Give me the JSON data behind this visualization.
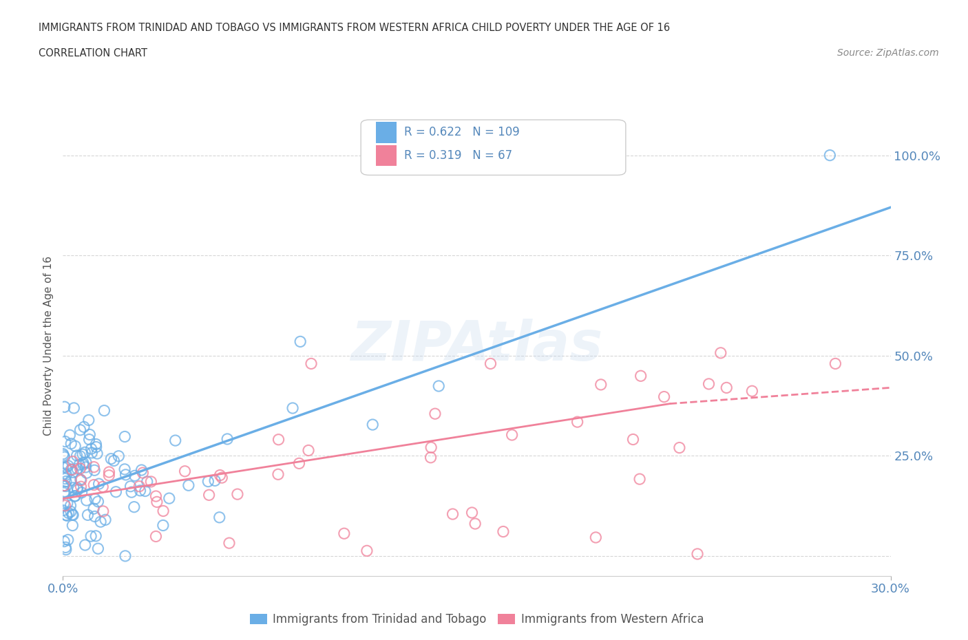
{
  "title_line1": "IMMIGRANTS FROM TRINIDAD AND TOBAGO VS IMMIGRANTS FROM WESTERN AFRICA CHILD POVERTY UNDER THE AGE OF 16",
  "title_line2": "CORRELATION CHART",
  "source_text": "Source: ZipAtlas.com",
  "ylabel": "Child Poverty Under the Age of 16",
  "xlim": [
    0.0,
    0.3
  ],
  "ylim": [
    -0.05,
    1.1
  ],
  "ytick_positions": [
    0.0,
    0.25,
    0.5,
    0.75,
    1.0
  ],
  "ytick_labels": [
    "",
    "25.0%",
    "50.0%",
    "75.0%",
    "100.0%"
  ],
  "color_blue": "#6aaee6",
  "color_pink": "#f0819a",
  "legend_R_blue": "0.622",
  "legend_N_blue": "109",
  "legend_R_pink": "0.319",
  "legend_N_pink": "67",
  "legend_label_blue": "Immigrants from Trinidad and Tobago",
  "legend_label_pink": "Immigrants from Western Africa",
  "blue_trendline": [
    0.0,
    0.143,
    0.3,
    0.87
  ],
  "pink_trendline_solid": [
    0.0,
    0.143,
    0.22,
    0.38
  ],
  "pink_trendline_dashed": [
    0.22,
    0.38,
    0.3,
    0.42
  ],
  "grid_color": "#cccccc",
  "title_color": "#333333",
  "axis_label_color": "#555555",
  "tick_color": "#5588bb",
  "bg_color": "#ffffff"
}
